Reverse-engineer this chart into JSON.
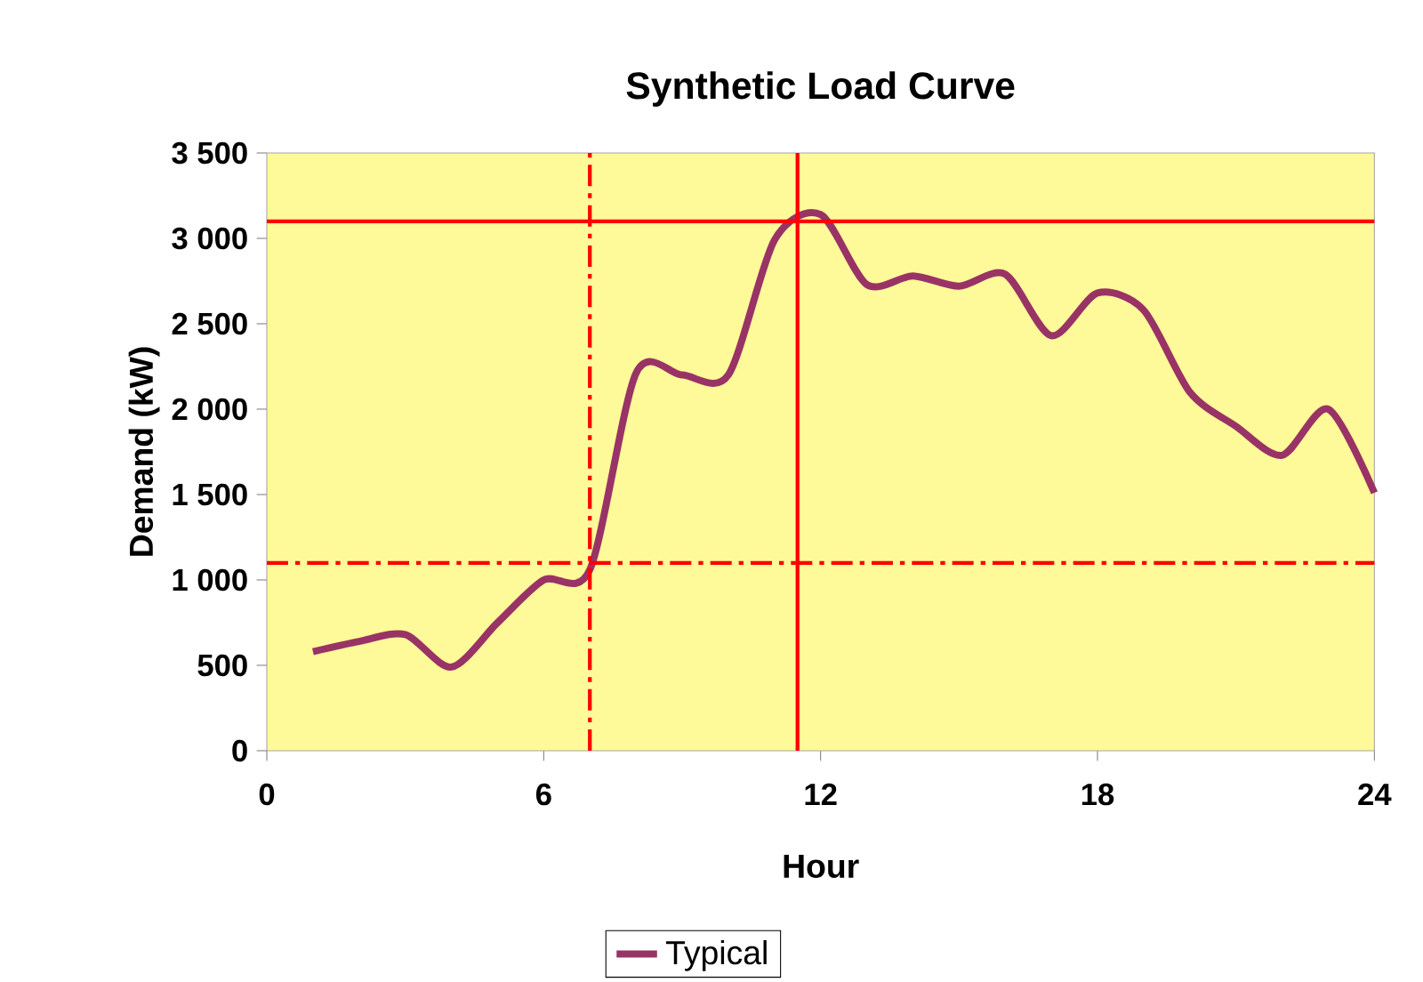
{
  "chart_data": {
    "type": "line",
    "title": "Synthetic Load Curve",
    "xlabel": "Hour",
    "ylabel": "Demand (kW)",
    "x": [
      1,
      2,
      3,
      4,
      5,
      6,
      7,
      8,
      9,
      10,
      11,
      12,
      13,
      14,
      15,
      16,
      17,
      18,
      19,
      20,
      21,
      22,
      23,
      24
    ],
    "series": [
      {
        "name": "Typical",
        "color": "#993366",
        "values": [
          580,
          640,
          680,
          490,
          750,
          1000,
          1060,
          2210,
          2200,
          2200,
          2990,
          3140,
          2730,
          2780,
          2720,
          2790,
          2430,
          2680,
          2580,
          2100,
          1900,
          1730,
          2000,
          1510
        ]
      }
    ],
    "xlim": [
      0,
      24
    ],
    "xticks": [
      0,
      6,
      12,
      18,
      24
    ],
    "ylim": [
      0,
      3500
    ],
    "yticks": [
      0,
      500,
      {
        "value": 1000,
        "label": "1 000"
      },
      {
        "value": 1500,
        "label": "1 500"
      },
      {
        "value": 2000,
        "label": "2 000"
      },
      {
        "value": 2500,
        "label": "2 500"
      },
      {
        "value": 3000,
        "label": "3 000"
      },
      {
        "value": 3500,
        "label": "3 500"
      }
    ],
    "ref_lines": [
      {
        "axis": "x",
        "value": 7,
        "color": "#ff0000",
        "line_style": "dashed"
      },
      {
        "axis": "y",
        "value": 1100,
        "color": "#ff0000",
        "line_style": "dashed"
      },
      {
        "axis": "x",
        "value": 11.5,
        "color": "#ff0000",
        "line_style": "solid"
      },
      {
        "axis": "y",
        "value": 3100,
        "color": "#ff0000",
        "line_style": "solid"
      }
    ],
    "grid": false,
    "legend": "bottom",
    "marker": "none",
    "line_style": "solid"
  }
}
